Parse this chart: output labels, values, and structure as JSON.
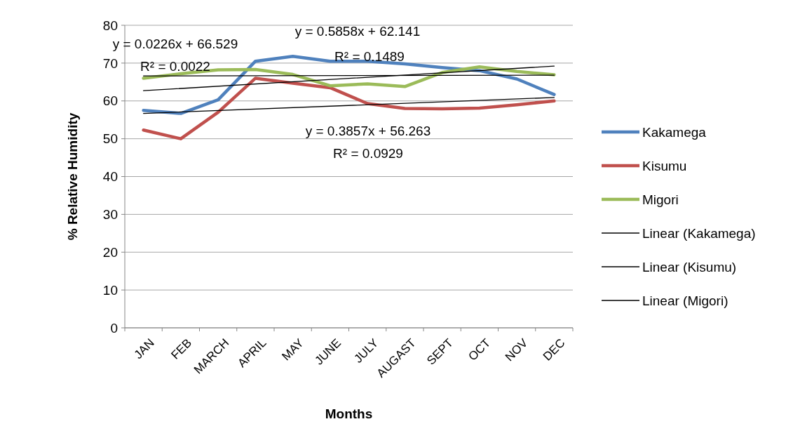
{
  "chart_data": {
    "type": "line",
    "xlabel": "Months",
    "ylabel": "% Relative Humidity",
    "categories": [
      "JAN",
      "FEB",
      "MARCH",
      "APRIL",
      "MAY",
      "JUNE",
      "JULY",
      "AUGAST",
      "SEPT",
      "OCT",
      "NOV",
      "DEC"
    ],
    "series": [
      {
        "name": "Kakamega",
        "color": "#4f81bd",
        "values": [
          57.5,
          56.7,
          60.3,
          70.5,
          71.8,
          70.5,
          70.5,
          69.8,
          68.8,
          68,
          65.8,
          61.7
        ]
      },
      {
        "name": "Kisumu",
        "color": "#c0504d",
        "values": [
          52.3,
          50,
          57,
          66,
          64.7,
          63.5,
          59.3,
          58,
          57.9,
          58.1,
          59,
          60
        ]
      },
      {
        "name": "Migori",
        "color": "#9bbb59",
        "values": [
          66,
          67.2,
          68.2,
          68.3,
          67,
          64,
          64.5,
          63.8,
          67.5,
          69,
          67.8,
          66.9
        ]
      },
      {
        "name": "Linear (Kakamega)",
        "color": "#000000",
        "x": [
          "JAN",
          "DEC"
        ],
        "values": [
          62.7,
          69.2
        ]
      },
      {
        "name": "Linear (Kisumu)",
        "color": "#000000",
        "x": [
          "JAN",
          "DEC"
        ],
        "values": [
          56.7,
          60.9
        ]
      },
      {
        "name": "Linear (Migori)",
        "color": "#000000",
        "x": [
          "JAN",
          "DEC"
        ],
        "values": [
          66.6,
          66.8
        ]
      }
    ],
    "ylim": [
      0,
      80
    ],
    "yticks": [
      0,
      10,
      20,
      30,
      40,
      50,
      60,
      70,
      80
    ],
    "grid": "y",
    "legend": "right",
    "marker": "none",
    "annotations": [
      "y = 0.0226x + 66.529",
      "R² = 0.0022",
      "y = 0.5858x + 62.141",
      "R² = 0.1489",
      "y = 0.3857x + 56.263",
      "R² = 0.0929"
    ]
  }
}
